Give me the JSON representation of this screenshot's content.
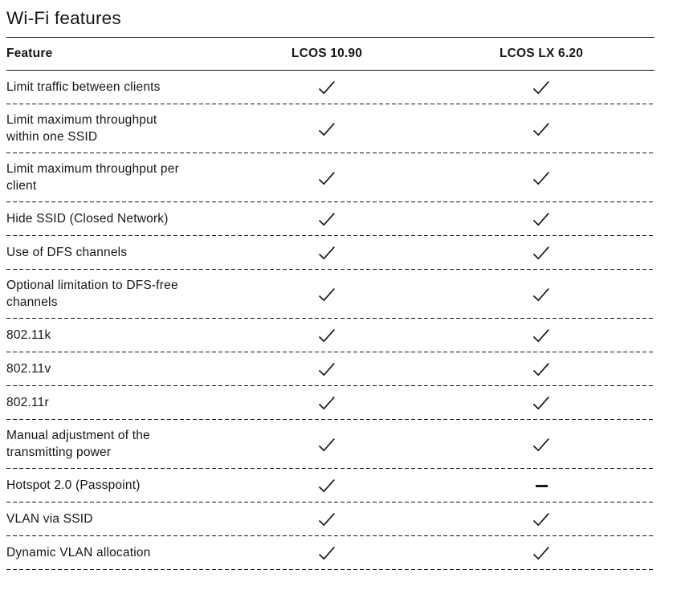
{
  "page": {
    "title": "Wi-Fi features"
  },
  "colors": {
    "text": "#161616",
    "line": "#161616",
    "background": "#ffffff"
  },
  "icons": {
    "check": "check-icon",
    "dash": "dash-icon"
  },
  "table": {
    "columns": [
      {
        "label": "Feature"
      },
      {
        "label": "LCOS 10.90"
      },
      {
        "label": "LCOS LX 6.20"
      }
    ],
    "rows": [
      {
        "feature": "Limit traffic between clients",
        "lcos_1090": "check",
        "lcos_lx_620": "check"
      },
      {
        "feature": "Limit maximum throughput\nwithin one SSID",
        "lcos_1090": "check",
        "lcos_lx_620": "check"
      },
      {
        "feature": "Limit maximum throughput per\nclient",
        "lcos_1090": "check",
        "lcos_lx_620": "check"
      },
      {
        "feature": "Hide SSID (Closed Network)",
        "lcos_1090": "check",
        "lcos_lx_620": "check"
      },
      {
        "feature": "Use of DFS channels",
        "lcos_1090": "check",
        "lcos_lx_620": "check"
      },
      {
        "feature": "Optional limitation to DFS-free\nchannels",
        "lcos_1090": "check",
        "lcos_lx_620": "check"
      },
      {
        "feature": "802.11k",
        "lcos_1090": "check",
        "lcos_lx_620": "check"
      },
      {
        "feature": "802.11v",
        "lcos_1090": "check",
        "lcos_lx_620": "check"
      },
      {
        "feature": "802.11r",
        "lcos_1090": "check",
        "lcos_lx_620": "check"
      },
      {
        "feature": "Manual adjustment of the\ntransmitting power",
        "lcos_1090": "check",
        "lcos_lx_620": "check"
      },
      {
        "feature": "Hotspot 2.0 (Passpoint)",
        "lcos_1090": "check",
        "lcos_lx_620": "dash"
      },
      {
        "feature": "VLAN via SSID",
        "lcos_1090": "check",
        "lcos_lx_620": "check"
      },
      {
        "feature": "Dynamic VLAN allocation",
        "lcos_1090": "check",
        "lcos_lx_620": "check"
      }
    ]
  }
}
